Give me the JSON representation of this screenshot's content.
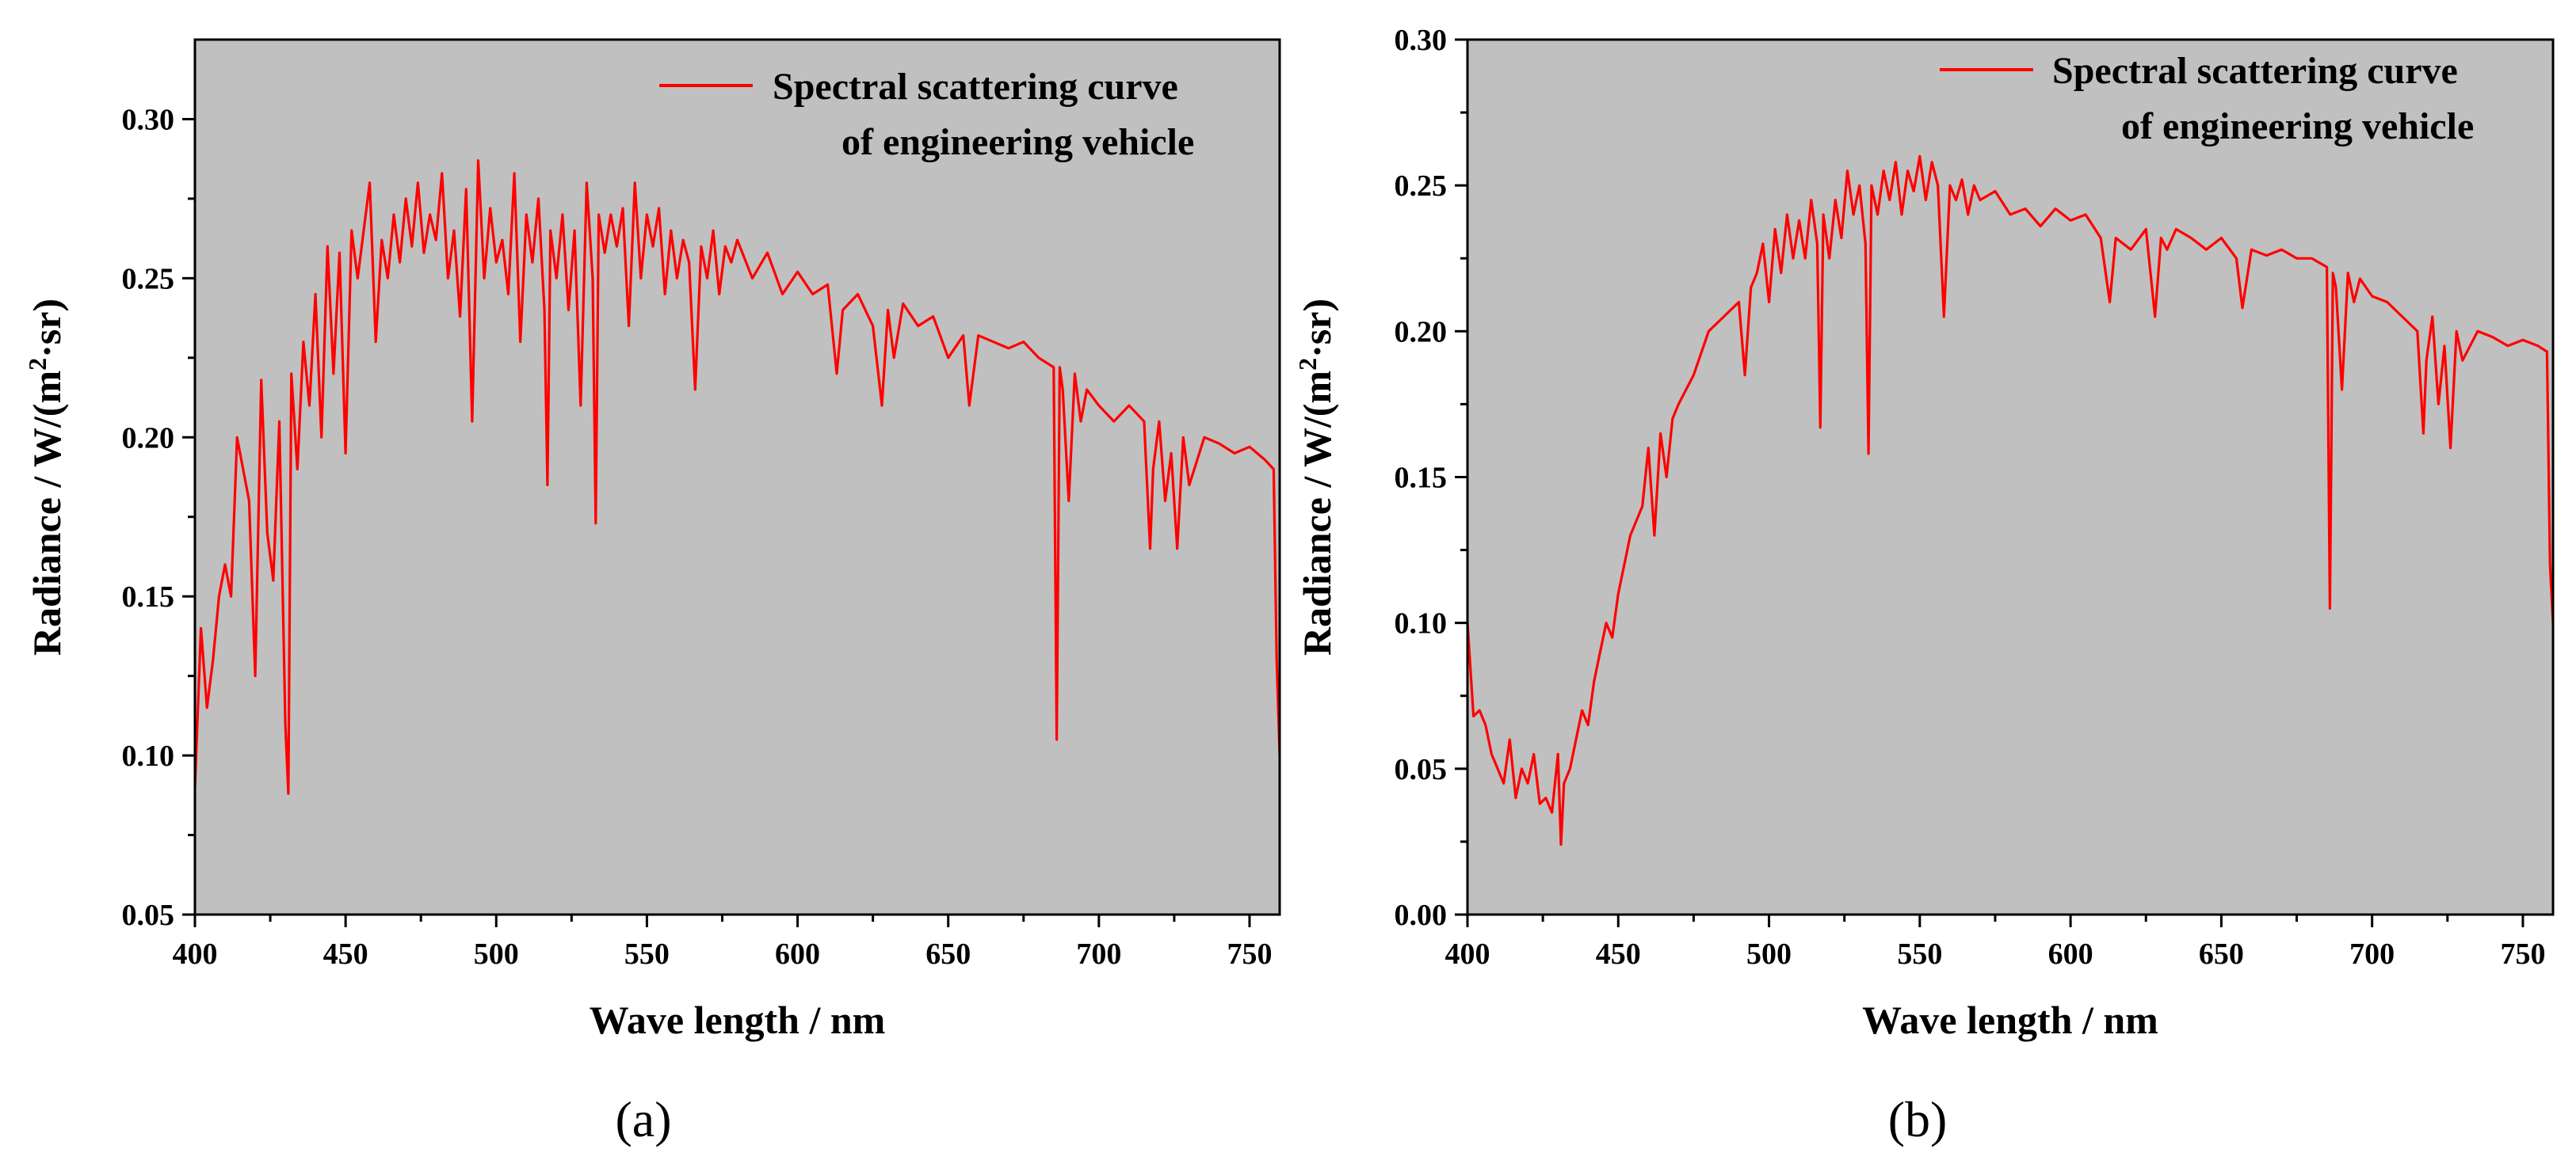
{
  "chart_data": [
    {
      "type": "line",
      "panel_label": "(a)",
      "xlabel": "Wave length / nm",
      "ylabel_main": "Radiance / W/(m",
      "ylabel_sup": "2",
      "ylabel_tail": "·sr)",
      "xlim": [
        400,
        760
      ],
      "ylim": [
        0.05,
        0.325
      ],
      "xticks": [
        400,
        450,
        500,
        550,
        600,
        650,
        700,
        750
      ],
      "xtick_labels": [
        "400",
        "450",
        "500",
        "550",
        "600",
        "650",
        "700",
        "750"
      ],
      "yticks": [
        0.05,
        0.1,
        0.15,
        0.2,
        0.25,
        0.3
      ],
      "ytick_labels": [
        "0.05",
        "0.10",
        "0.15",
        "0.20",
        "0.25",
        "0.30"
      ],
      "legend": {
        "line1": "Spectral scattering curve",
        "line2": "of engineering vehicle",
        "position": "top-right"
      },
      "series": [
        {
          "name": "Spectral scattering curve of engineering vehicle",
          "color": "#ff0000",
          "x": [
            400,
            402,
            404,
            406,
            408,
            410,
            412,
            414,
            416,
            418,
            420,
            422,
            424,
            426,
            428,
            430,
            431,
            432,
            434,
            436,
            438,
            440,
            442,
            444,
            446,
            448,
            450,
            452,
            454,
            456,
            458,
            460,
            462,
            464,
            466,
            468,
            470,
            472,
            474,
            476,
            478,
            480,
            482,
            484,
            486,
            488,
            490,
            492,
            494,
            496,
            498,
            500,
            502,
            504,
            506,
            508,
            510,
            512,
            514,
            516,
            517,
            518,
            520,
            522,
            524,
            526,
            528,
            530,
            532,
            533,
            534,
            536,
            538,
            540,
            542,
            544,
            546,
            548,
            550,
            552,
            554,
            556,
            558,
            560,
            562,
            564,
            566,
            568,
            570,
            572,
            574,
            576,
            578,
            580,
            585,
            590,
            595,
            600,
            605,
            610,
            613,
            615,
            620,
            625,
            628,
            630,
            632,
            635,
            640,
            645,
            650,
            655,
            657,
            660,
            665,
            670,
            675,
            680,
            685,
            686,
            687,
            688,
            690,
            692,
            694,
            696,
            700,
            705,
            710,
            715,
            717,
            718,
            720,
            722,
            724,
            726,
            728,
            730,
            735,
            740,
            745,
            750,
            755,
            758,
            759,
            760
          ],
          "y": [
            0.09,
            0.14,
            0.115,
            0.13,
            0.15,
            0.16,
            0.15,
            0.2,
            0.19,
            0.18,
            0.125,
            0.218,
            0.17,
            0.155,
            0.205,
            0.11,
            0.088,
            0.22,
            0.19,
            0.23,
            0.21,
            0.245,
            0.2,
            0.26,
            0.22,
            0.258,
            0.195,
            0.265,
            0.25,
            0.265,
            0.28,
            0.23,
            0.262,
            0.25,
            0.27,
            0.255,
            0.275,
            0.26,
            0.28,
            0.258,
            0.27,
            0.262,
            0.283,
            0.25,
            0.265,
            0.238,
            0.278,
            0.205,
            0.287,
            0.25,
            0.272,
            0.255,
            0.262,
            0.245,
            0.283,
            0.23,
            0.27,
            0.255,
            0.275,
            0.24,
            0.185,
            0.265,
            0.25,
            0.27,
            0.24,
            0.265,
            0.21,
            0.28,
            0.25,
            0.173,
            0.27,
            0.258,
            0.27,
            0.26,
            0.272,
            0.235,
            0.28,
            0.25,
            0.27,
            0.26,
            0.272,
            0.245,
            0.265,
            0.25,
            0.262,
            0.255,
            0.215,
            0.26,
            0.25,
            0.265,
            0.245,
            0.26,
            0.255,
            0.262,
            0.25,
            0.258,
            0.245,
            0.252,
            0.245,
            0.248,
            0.22,
            0.24,
            0.245,
            0.235,
            0.21,
            0.24,
            0.225,
            0.242,
            0.235,
            0.238,
            0.225,
            0.232,
            0.21,
            0.232,
            0.23,
            0.228,
            0.23,
            0.225,
            0.222,
            0.105,
            0.222,
            0.215,
            0.18,
            0.22,
            0.205,
            0.215,
            0.21,
            0.205,
            0.21,
            0.205,
            0.165,
            0.19,
            0.205,
            0.18,
            0.195,
            0.165,
            0.2,
            0.185,
            0.2,
            0.198,
            0.195,
            0.197,
            0.193,
            0.19,
            0.13,
            0.1
          ]
        }
      ]
    },
    {
      "type": "line",
      "panel_label": "(b)",
      "xlabel": "Wave length / nm",
      "ylabel_main": "Radiance / W/(m",
      "ylabel_sup": "2",
      "ylabel_tail": "·sr)",
      "xlim": [
        400,
        760
      ],
      "ylim": [
        0.0,
        0.3
      ],
      "xticks": [
        400,
        450,
        500,
        550,
        600,
        650,
        700,
        750
      ],
      "xtick_labels": [
        "400",
        "450",
        "500",
        "550",
        "600",
        "650",
        "700",
        "750"
      ],
      "yticks": [
        0.0,
        0.05,
        0.1,
        0.15,
        0.2,
        0.25,
        0.3
      ],
      "ytick_labels": [
        "0.00",
        "0.05",
        "0.10",
        "0.15",
        "0.20",
        "0.25",
        "0.30"
      ],
      "legend": {
        "line1": "Spectral scattering curve",
        "line2": "of engineering vehicle",
        "position": "top-right"
      },
      "series": [
        {
          "name": "Spectral scattering curve of engineering vehicle",
          "color": "#ff0000",
          "x": [
            400,
            402,
            404,
            406,
            408,
            410,
            412,
            414,
            416,
            418,
            420,
            422,
            424,
            426,
            428,
            430,
            431,
            432,
            434,
            436,
            438,
            440,
            442,
            444,
            446,
            448,
            450,
            452,
            454,
            456,
            458,
            460,
            462,
            464,
            466,
            468,
            470,
            475,
            480,
            485,
            490,
            492,
            494,
            496,
            498,
            500,
            502,
            504,
            506,
            508,
            510,
            512,
            514,
            516,
            517,
            518,
            520,
            522,
            524,
            526,
            528,
            530,
            532,
            533,
            534,
            536,
            538,
            540,
            542,
            544,
            546,
            548,
            550,
            552,
            554,
            556,
            558,
            560,
            562,
            564,
            566,
            568,
            570,
            575,
            580,
            585,
            590,
            595,
            600,
            605,
            610,
            613,
            615,
            620,
            625,
            628,
            630,
            632,
            635,
            640,
            645,
            650,
            655,
            657,
            660,
            665,
            670,
            675,
            680,
            685,
            686,
            687,
            688,
            690,
            692,
            694,
            696,
            700,
            705,
            710,
            715,
            717,
            718,
            720,
            722,
            724,
            726,
            728,
            730,
            735,
            740,
            745,
            750,
            755,
            758,
            759,
            760
          ],
          "y": [
            0.1,
            0.068,
            0.07,
            0.065,
            0.055,
            0.05,
            0.045,
            0.06,
            0.04,
            0.05,
            0.045,
            0.055,
            0.038,
            0.04,
            0.035,
            0.055,
            0.024,
            0.045,
            0.05,
            0.06,
            0.07,
            0.065,
            0.08,
            0.09,
            0.1,
            0.095,
            0.11,
            0.12,
            0.13,
            0.135,
            0.14,
            0.16,
            0.13,
            0.165,
            0.15,
            0.17,
            0.175,
            0.185,
            0.2,
            0.205,
            0.21,
            0.185,
            0.215,
            0.22,
            0.23,
            0.21,
            0.235,
            0.22,
            0.24,
            0.225,
            0.238,
            0.225,
            0.245,
            0.23,
            0.167,
            0.24,
            0.225,
            0.245,
            0.232,
            0.255,
            0.24,
            0.25,
            0.23,
            0.158,
            0.25,
            0.24,
            0.255,
            0.245,
            0.258,
            0.24,
            0.255,
            0.248,
            0.26,
            0.245,
            0.258,
            0.25,
            0.205,
            0.25,
            0.245,
            0.252,
            0.24,
            0.25,
            0.245,
            0.248,
            0.24,
            0.242,
            0.236,
            0.242,
            0.238,
            0.24,
            0.232,
            0.21,
            0.232,
            0.228,
            0.235,
            0.205,
            0.232,
            0.228,
            0.235,
            0.232,
            0.228,
            0.232,
            0.225,
            0.208,
            0.228,
            0.226,
            0.228,
            0.225,
            0.225,
            0.222,
            0.105,
            0.22,
            0.215,
            0.18,
            0.22,
            0.21,
            0.218,
            0.212,
            0.21,
            0.205,
            0.2,
            0.165,
            0.19,
            0.205,
            0.175,
            0.195,
            0.16,
            0.2,
            0.19,
            0.2,
            0.198,
            0.195,
            0.197,
            0.195,
            0.193,
            0.12,
            0.1
          ]
        }
      ]
    }
  ]
}
